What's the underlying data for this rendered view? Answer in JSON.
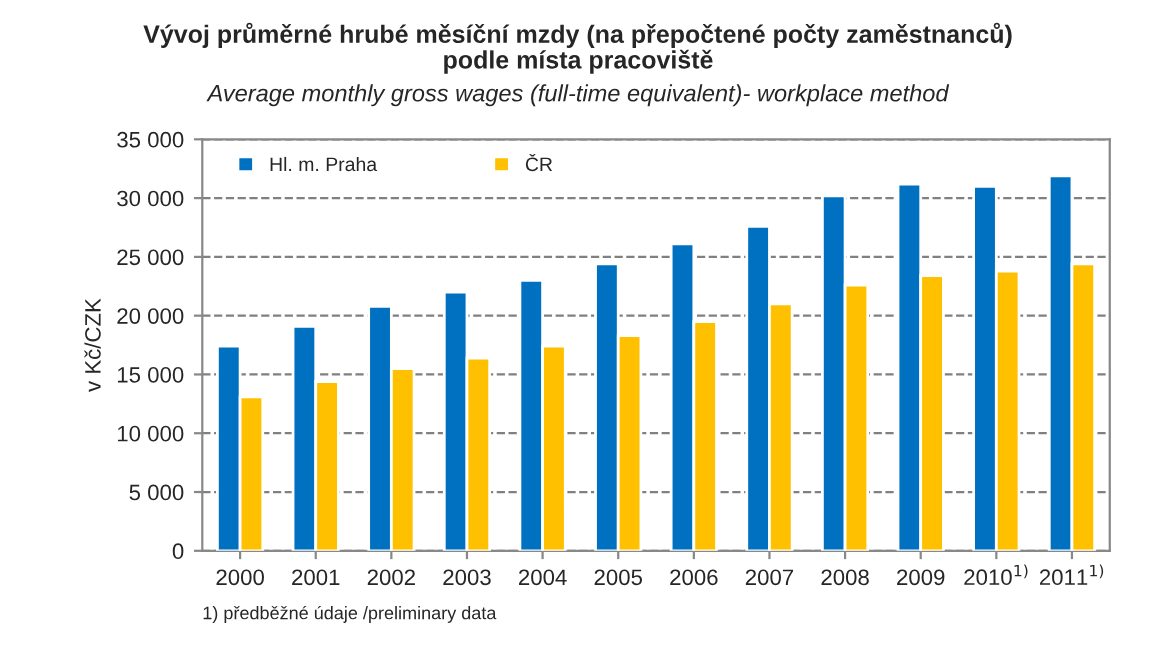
{
  "chart_data": {
    "type": "bar",
    "title": "Vývoj průměrné hrubé měsíční mzdy (na přepočtené počty zaměstnanců)\npodle místa pracoviště",
    "subtitle": "Average monthly gross wages (full-time equivalent)- workplace method",
    "ylabel": "v Kč/CZK",
    "categories": [
      "2000",
      "2001",
      "2002",
      "2003",
      "2004",
      "2005",
      "2006",
      "2007",
      "2008",
      "2009",
      "2010$^{1)}$",
      "2011$^{1)}$"
    ],
    "series": [
      {
        "name": "Hl. m. Praha",
        "color": "#0070c0",
        "values": [
          17400,
          19100,
          20800,
          22000,
          23000,
          24400,
          26100,
          27600,
          30200,
          31200,
          31000,
          31900
        ]
      },
      {
        "name": "ČR",
        "color": "#ffc000",
        "values": [
          13100,
          14400,
          15500,
          16400,
          17400,
          18300,
          19500,
          21000,
          22600,
          23400,
          23800,
          24400
        ]
      }
    ],
    "ylim": [
      0,
      35000
    ],
    "yticks": [
      0,
      {
        "value": 5000,
        "label": "5 000"
      },
      {
        "value": 10000,
        "label": "10 000"
      },
      {
        "value": 15000,
        "label": "15 000"
      },
      {
        "value": 20000,
        "label": "20 000"
      },
      {
        "value": 25000,
        "label": "25 000"
      },
      {
        "value": 30000,
        "label": "30 000"
      },
      {
        "value": 35000,
        "label": "35 000"
      }
    ],
    "grid": "y",
    "legend": "top left",
    "annotations": [
      "1) předběžné údaje /preliminary data"
    ]
  }
}
